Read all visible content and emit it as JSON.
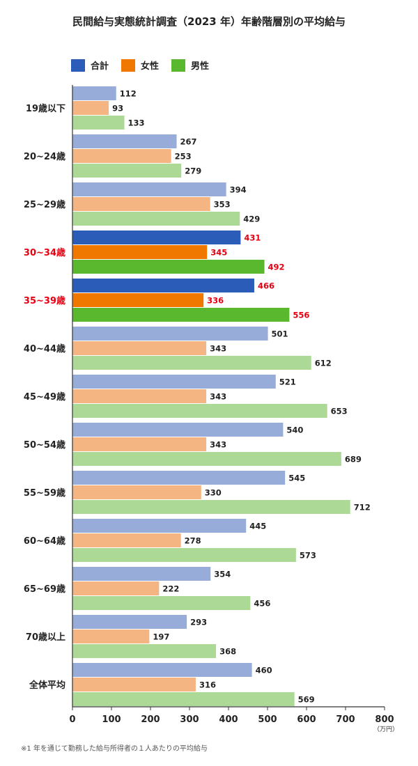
{
  "chart_data": {
    "type": "bar",
    "orientation": "horizontal",
    "title": "民間給与実態統計調査（2023 年）年齢階層別の平均給与",
    "categories": [
      "19歳以下",
      "20~24歳",
      "25~29歳",
      "30~34歳",
      "35~39歳",
      "40~44歳",
      "45~49歳",
      "50~54歳",
      "55~59歳",
      "60~64歳",
      "65~69歳",
      "70歳以上",
      "全体平均"
    ],
    "highlighted_categories": [
      "30~34歳",
      "35~39歳"
    ],
    "series": [
      {
        "name": "合計",
        "color": "#2b5cb8",
        "faded_color": "#97acd9",
        "values": [
          112,
          267,
          394,
          431,
          466,
          501,
          521,
          540,
          545,
          445,
          354,
          293,
          460
        ]
      },
      {
        "name": "女性",
        "color": "#f07800",
        "faded_color": "#f5b582",
        "values": [
          93,
          253,
          353,
          345,
          336,
          343,
          343,
          343,
          330,
          278,
          222,
          197,
          316
        ]
      },
      {
        "name": "男性",
        "color": "#5ab82e",
        "faded_color": "#acd996",
        "values": [
          133,
          279,
          429,
          492,
          556,
          612,
          653,
          689,
          712,
          573,
          456,
          368,
          569
        ]
      }
    ],
    "xlim": [
      0,
      800
    ],
    "xticks": [
      0,
      100,
      200,
      300,
      400,
      500,
      600,
      700,
      800
    ],
    "unit": "（万円）",
    "highlight_label_color": "#e60012",
    "legend": "top-left",
    "grid": false,
    "note": "※1 年を通じて勤務した給与所得者の１人あたりの平均給与"
  }
}
